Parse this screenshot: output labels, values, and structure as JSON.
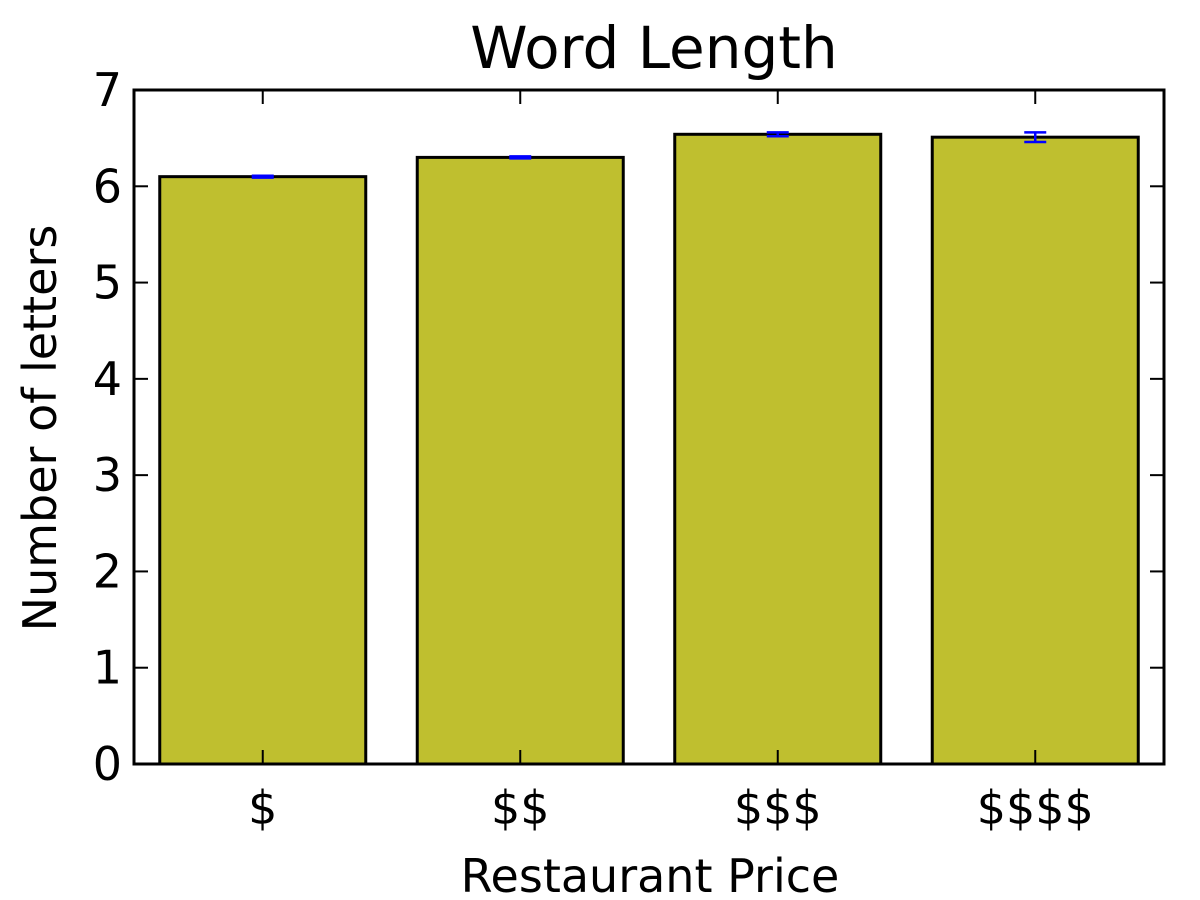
{
  "chart_data": {
    "type": "bar",
    "title": "Word Length",
    "xlabel": "Restaurant Price",
    "ylabel": "Number of letters",
    "categories": [
      "$",
      "$$",
      "$$$",
      "$$$$"
    ],
    "values": [
      6.1,
      6.3,
      6.54,
      6.51
    ],
    "errors": [
      0.01,
      0.01,
      0.02,
      0.05
    ],
    "ylim": [
      0,
      7
    ],
    "yticks": [
      "0",
      "1",
      "2",
      "3",
      "4",
      "5",
      "6",
      "7"
    ],
    "grid": false,
    "colors": {
      "bar": "#bfbf2f",
      "bar_edge": "#000000",
      "error_bar": "#0000ff",
      "axes": "#000000"
    }
  }
}
